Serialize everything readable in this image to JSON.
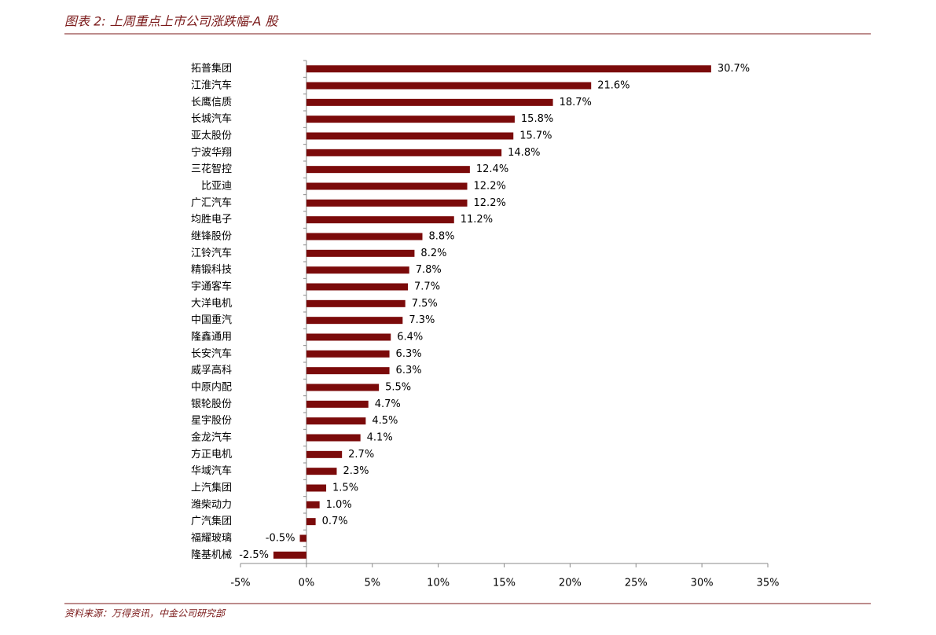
{
  "chart_data": {
    "type": "barh",
    "title": "图表 2: 上周重点上市公司涨跌幅-A 股",
    "source": "资料来源：万得资讯，中金公司研究部",
    "categories": [
      "拓普集团",
      "江淮汽车",
      "长鹰信质",
      "长城汽车",
      "亚太股份",
      "宁波华翔",
      "三花智控",
      "比亚迪",
      "广汇汽车",
      "均胜电子",
      "继锋股份",
      "江铃汽车",
      "精锻科技",
      "宇通客车",
      "大洋电机",
      "中国重汽",
      "隆鑫通用",
      "长安汽车",
      "威孚高科",
      "中原内配",
      "银轮股份",
      "星宇股份",
      "金龙汽车",
      "方正电机",
      "华域汽车",
      "上汽集团",
      "潍柴动力",
      "广汽集团",
      "福耀玻璃",
      "隆基机械"
    ],
    "values": [
      30.7,
      21.6,
      18.7,
      15.8,
      15.7,
      14.8,
      12.4,
      12.2,
      12.2,
      11.2,
      8.8,
      8.2,
      7.8,
      7.7,
      7.5,
      7.3,
      6.4,
      6.3,
      6.3,
      5.5,
      4.7,
      4.5,
      4.1,
      2.7,
      2.3,
      1.5,
      1.0,
      0.7,
      -0.5,
      -2.5
    ],
    "value_labels": [
      "30.7%",
      "21.6%",
      "18.7%",
      "15.8%",
      "15.7%",
      "14.8%",
      "12.4%",
      "12.2%",
      "12.2%",
      "11.2%",
      "8.8%",
      "8.2%",
      "7.8%",
      "7.7%",
      "7.5%",
      "7.3%",
      "6.4%",
      "6.3%",
      "6.3%",
      "5.5%",
      "4.7%",
      "4.5%",
      "4.1%",
      "2.7%",
      "2.3%",
      "1.5%",
      "1.0%",
      "0.7%",
      "-0.5%",
      "-2.5%"
    ],
    "color": "#7b0a0a",
    "xlim": [
      -5,
      35
    ],
    "xticks": [
      {
        "value": -5,
        "label": "-5%"
      },
      {
        "value": 0,
        "label": "0%"
      },
      {
        "value": 5,
        "label": "5%"
      },
      {
        "value": 10,
        "label": "10%"
      },
      {
        "value": 15,
        "label": "15%"
      },
      {
        "value": 20,
        "label": "20%"
      },
      {
        "value": 25,
        "label": "25%"
      },
      {
        "value": 30,
        "label": "30%"
      },
      {
        "value": 35,
        "label": "35%"
      }
    ]
  }
}
